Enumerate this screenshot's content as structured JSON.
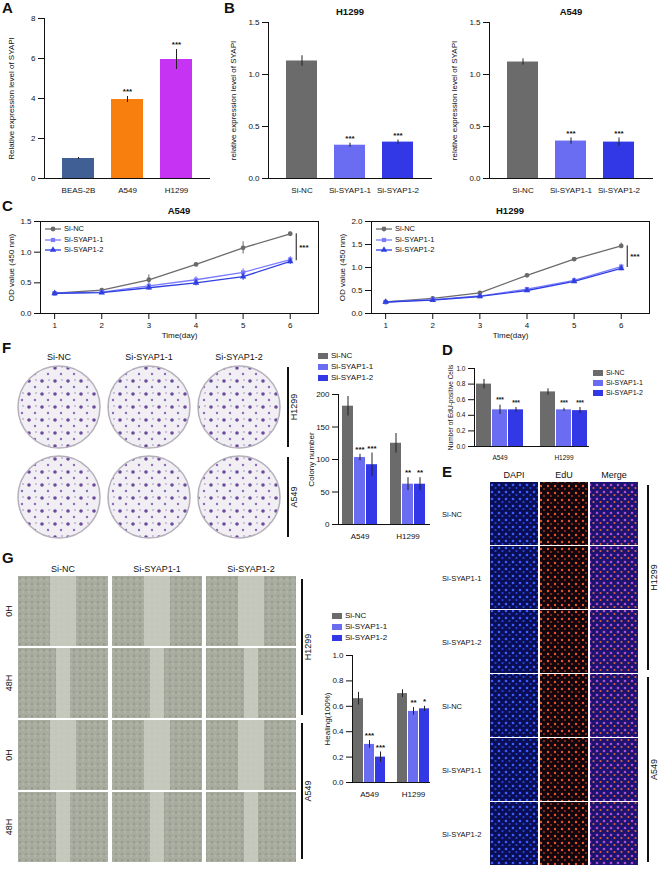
{
  "chart_data": [
    {
      "panel_label": "A",
      "type": "bar",
      "categories": [
        "BEAS-2B",
        "A549",
        "H1299"
      ],
      "values": [
        1.0,
        3.95,
        5.95
      ],
      "errors": [
        0.05,
        0.15,
        0.5
      ],
      "significance": [
        null,
        "***",
        "***"
      ],
      "colors": [
        "#3f5f95",
        "#f87f0e",
        "#c733f2"
      ],
      "y_label": "Relative expression level of SYAPI",
      "ylim": [
        0,
        8
      ],
      "yticks": [
        0,
        2,
        4,
        6,
        8
      ]
    },
    {
      "panel_label": "B",
      "type": "bar",
      "title": "H1299",
      "categories": [
        "Si-NC",
        "Si-SYAP1-1",
        "Si-SYAP1-2"
      ],
      "values": [
        1.13,
        0.32,
        0.35
      ],
      "errors": [
        0.05,
        0.02,
        0.02
      ],
      "significance": [
        null,
        "***",
        "***"
      ],
      "colors": [
        "#6b6b6b",
        "#6a6cf2",
        "#3338e6"
      ],
      "y_label": "relative expression level of SYAPI",
      "ylim": [
        0,
        1.5
      ],
      "yticks": [
        {
          "value": 0,
          "label": "0.0"
        },
        0.5,
        {
          "value": 1,
          "label": "1.0"
        },
        1.5
      ]
    },
    {
      "type": "bar",
      "title": "A549",
      "categories": [
        "Si-NC",
        "Si-SYAP1-1",
        "Si-SYAP1-2"
      ],
      "values": [
        1.12,
        0.36,
        0.35
      ],
      "errors": [
        0.03,
        0.03,
        0.04
      ],
      "significance": [
        null,
        "***",
        "***"
      ],
      "colors": [
        "#6b6b6b",
        "#6a6cf2",
        "#3338e6"
      ],
      "y_label": "relative expression level of SYAPI",
      "ylim": [
        0,
        1.5
      ],
      "yticks": [
        {
          "value": 0,
          "label": "0.0"
        },
        0.5,
        {
          "value": 1,
          "label": "1.0"
        },
        1.5
      ]
    },
    {
      "panel_label": "C",
      "type": "line",
      "title": "A549",
      "x": [
        1,
        2,
        3,
        4,
        5,
        6
      ],
      "xlim": [
        0.7,
        6.6
      ],
      "xticks": [
        1,
        2,
        3,
        4,
        5,
        6
      ],
      "x_label": "Time(day)",
      "y_label": "OD value (450 nm)",
      "ylim": [
        0,
        1.5
      ],
      "yticks": [
        {
          "value": 0,
          "label": "0.0"
        },
        0.5,
        {
          "value": 1,
          "label": "1.0"
        },
        1.5
      ],
      "legend": "top-left",
      "series": [
        {
          "name": "Si-NC",
          "color": "#6b6b6b",
          "marker": "circle",
          "values": [
            0.33,
            0.38,
            0.55,
            0.8,
            1.07,
            1.3
          ],
          "errors": [
            0.02,
            0.03,
            0.08,
            0.03,
            0.1,
            0.03
          ]
        },
        {
          "name": "Si-SYAP1-1",
          "color": "#7b7bff",
          "marker": "square",
          "values": [
            0.33,
            0.35,
            0.45,
            0.55,
            0.67,
            0.88
          ],
          "errors": [
            0.02,
            0.02,
            0.04,
            0.05,
            0.06,
            0.05
          ]
        },
        {
          "name": "Si-SYAP1-2",
          "color": "#2f3fe0",
          "marker": "triangle",
          "values": [
            0.33,
            0.34,
            0.42,
            0.5,
            0.6,
            0.85
          ],
          "errors": [
            0.02,
            0.02,
            0.04,
            0.05,
            0.06,
            0.05
          ]
        }
      ],
      "annotations": [
        {
          "x": 6,
          "y1": 0.86,
          "y2": 1.3,
          "text": "***"
        }
      ]
    },
    {
      "type": "line",
      "title": "H1299",
      "x": [
        1,
        2,
        3,
        4,
        5,
        6
      ],
      "xlim": [
        0.7,
        6.6
      ],
      "xticks": [
        1,
        2,
        3,
        4,
        5,
        6
      ],
      "x_label": "Time(day)",
      "y_label": "OD value (450 nm)",
      "ylim": [
        0,
        2
      ],
      "yticks": [
        {
          "value": 0,
          "label": "0.0"
        },
        0.5,
        {
          "value": 1,
          "label": "1.0"
        },
        1.5,
        {
          "value": 2,
          "label": "2.0"
        }
      ],
      "legend": "top-left",
      "series": [
        {
          "name": "Si-NC",
          "color": "#6b6b6b",
          "marker": "circle",
          "values": [
            0.25,
            0.33,
            0.45,
            0.83,
            1.18,
            1.47
          ],
          "errors": [
            0.02,
            0.02,
            0.03,
            0.03,
            0.03,
            0.06
          ]
        },
        {
          "name": "Si-SYAP1-1",
          "color": "#7b7bff",
          "marker": "square",
          "values": [
            0.25,
            0.3,
            0.38,
            0.53,
            0.72,
            1.02
          ],
          "errors": [
            0.02,
            0.02,
            0.03,
            0.03,
            0.05,
            0.05
          ]
        },
        {
          "name": "Si-SYAP1-2",
          "color": "#2f3fe0",
          "marker": "triangle",
          "values": [
            0.25,
            0.29,
            0.37,
            0.5,
            0.7,
            0.98
          ],
          "errors": [
            0.02,
            0.02,
            0.03,
            0.03,
            0.05,
            0.05
          ]
        }
      ],
      "annotations": [
        {
          "x": 6,
          "y1": 1.0,
          "y2": 1.47,
          "text": "***"
        }
      ]
    },
    {
      "panel_label": "D",
      "type": "bar",
      "categories": [
        "A549",
        "H1299"
      ],
      "y_label": "Number of EdU-positive Cells",
      "ylim": [
        0,
        1
      ],
      "yticks": [
        {
          "value": 0,
          "label": "0.0"
        },
        0.2,
        0.4,
        0.6,
        0.8,
        {
          "value": 1,
          "label": "1.0"
        }
      ],
      "legend": "right",
      "series": [
        {
          "name": "Si-NC",
          "color": "#6b6b6b",
          "values": [
            0.8,
            0.7
          ],
          "errors": [
            0.06,
            0.04
          ],
          "significance": [
            null,
            null
          ]
        },
        {
          "name": "Si-SYAP1-1",
          "color": "#6a6cf2",
          "values": [
            0.47,
            0.47
          ],
          "errors": [
            0.06,
            0.02
          ],
          "significance": [
            "***",
            "***"
          ]
        },
        {
          "name": "Si-SYAP1-2",
          "color": "#3338e6",
          "values": [
            0.47,
            0.46
          ],
          "errors": [
            0.03,
            0.04
          ],
          "significance": [
            "***",
            "***"
          ]
        }
      ]
    },
    {
      "type": "bar",
      "categories": [
        "A549",
        "H1299"
      ],
      "y_label": "Colony number",
      "ylim": [
        0,
        200
      ],
      "yticks": [
        0,
        50,
        100,
        150,
        200
      ],
      "legend": "top",
      "series": [
        {
          "name": "Si-NC",
          "color": "#6b6b6b",
          "values": [
            182,
            125
          ],
          "errors": [
            15,
            15
          ],
          "significance": [
            null,
            null
          ]
        },
        {
          "name": "Si-SYAP1-1",
          "color": "#6a6cf2",
          "values": [
            103,
            62
          ],
          "errors": [
            5,
            10
          ],
          "significance": [
            "***",
            "**"
          ]
        },
        {
          "name": "Si-SYAP1-2",
          "color": "#3338e6",
          "values": [
            92,
            62
          ],
          "errors": [
            18,
            10
          ],
          "significance": [
            "***",
            "**"
          ]
        }
      ]
    },
    {
      "type": "bar",
      "categories": [
        "A549",
        "H1299"
      ],
      "y_label": "Healing(100%)",
      "ylim": [
        0,
        1
      ],
      "yticks": [
        {
          "value": 0,
          "label": "0.0"
        },
        0.2,
        0.4,
        0.6,
        0.8,
        {
          "value": 1,
          "label": "1.0"
        }
      ],
      "legend": "top",
      "series": [
        {
          "name": "Si-NC",
          "color": "#6b6b6b",
          "values": [
            0.66,
            0.7
          ],
          "errors": [
            0.05,
            0.03
          ],
          "significance": [
            null,
            null
          ]
        },
        {
          "name": "Si-SYAP1-1",
          "color": "#6a6cf2",
          "values": [
            0.3,
            0.56
          ],
          "errors": [
            0.03,
            0.03
          ],
          "significance": [
            "***",
            "**"
          ]
        },
        {
          "name": "Si-SYAP1-2",
          "color": "#3338e6",
          "values": [
            0.2,
            0.58
          ],
          "errors": [
            0.04,
            0.02
          ],
          "significance": [
            "***",
            "*"
          ]
        }
      ]
    }
  ],
  "image_panels": [
    {
      "panel_label": "F",
      "type": "colony",
      "column_labels": [
        "Si-NC",
        "Si-SYAP1-1",
        "Si-SYAP1-2"
      ],
      "group_labels": [
        "H1299",
        "A549"
      ]
    },
    {
      "panel_label": "E",
      "type": "fluorescence",
      "column_labels": [
        "DAPI",
        "EdU",
        "Merge"
      ],
      "row_labels": [
        "Si-NC",
        "Si-SYAP1-1",
        "Si-SYAP1-2",
        "Si-NC",
        "Si-SYAP1-1",
        "Si-SYAP1-2"
      ],
      "group_labels": [
        "H1299",
        "A549"
      ]
    },
    {
      "panel_label": "G",
      "type": "wound",
      "column_labels": [
        "Si-NC",
        "Si-SYAP1-1",
        "Si-SYAP1-2"
      ],
      "row_labels": [
        "0H",
        "48H",
        "0H",
        "48H"
      ],
      "group_labels": [
        "H1299",
        "A549"
      ]
    }
  ]
}
